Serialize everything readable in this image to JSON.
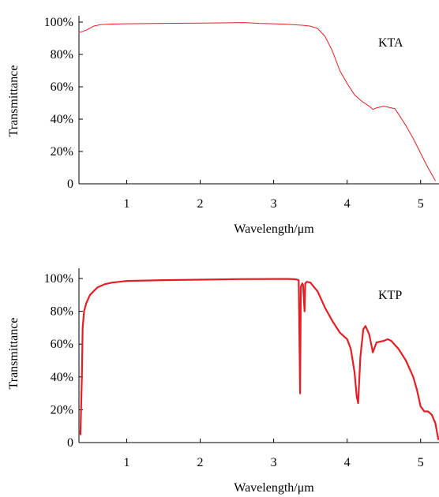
{
  "chart_data": [
    {
      "type": "line",
      "series_label": "KTA",
      "xlabel": "Wavelength/μm",
      "ylabel": "Transmittance",
      "xlim": [
        0.35,
        5.25
      ],
      "ylim": [
        0,
        100
      ],
      "x_ticks": [
        1,
        2,
        3,
        4,
        5
      ],
      "x_tick_labels": [
        "1",
        "2",
        "3",
        "4",
        "5"
      ],
      "y_ticks": [
        0,
        20,
        40,
        60,
        80,
        100
      ],
      "y_tick_labels": [
        "0",
        "20%",
        "40%",
        "60%",
        "80%",
        "100%"
      ],
      "color": "#e31e24",
      "line_width": 1,
      "series": [
        {
          "x": [
            0.35,
            0.45,
            0.55,
            0.65,
            0.8,
            1.0,
            1.5,
            2.0,
            2.3,
            2.6,
            2.8,
            3.0,
            3.2,
            3.4,
            3.5,
            3.6,
            3.7,
            3.8,
            3.9,
            4.0,
            4.1,
            4.2,
            4.3,
            4.35,
            4.4,
            4.5,
            4.6,
            4.65,
            4.7,
            4.8,
            4.9,
            5.0,
            5.1,
            5.2
          ],
          "y": [
            93.5,
            95,
            97.5,
            98.5,
            98.8,
            99,
            99.2,
            99.4,
            99.5,
            99.7,
            99.2,
            99,
            98.6,
            98,
            97.5,
            96,
            91,
            82,
            70,
            62,
            55,
            51,
            48,
            46,
            47,
            48,
            47,
            46.5,
            43,
            36,
            28,
            19,
            10,
            2
          ]
        }
      ]
    },
    {
      "type": "line",
      "series_label": "KTP",
      "xlabel": "Wavelength/μm",
      "ylabel": "Transmittance",
      "xlim": [
        0.35,
        5.25
      ],
      "ylim": [
        0,
        100
      ],
      "x_ticks": [
        1,
        2,
        3,
        4,
        5
      ],
      "x_tick_labels": [
        "1",
        "2",
        "3",
        "4",
        "5"
      ],
      "y_ticks": [
        0,
        20,
        40,
        60,
        80,
        100
      ],
      "y_tick_labels": [
        "0",
        "20%",
        "40%",
        "60%",
        "80%",
        "100%"
      ],
      "color": "#e31e24",
      "line_width": 2.2,
      "series": [
        {
          "x": [
            0.37,
            0.39,
            0.4,
            0.42,
            0.45,
            0.5,
            0.6,
            0.7,
            0.8,
            0.9,
            1.0,
            1.5,
            2.0,
            2.5,
            3.0,
            3.1,
            3.2,
            3.3,
            3.34,
            3.36,
            3.37,
            3.38,
            3.39,
            3.4,
            3.42,
            3.43,
            3.45,
            3.5,
            3.6,
            3.7,
            3.8,
            3.9,
            3.95,
            4.0,
            4.05,
            4.1,
            4.13,
            4.15,
            4.18,
            4.22,
            4.25,
            4.3,
            4.35,
            4.4,
            4.5,
            4.55,
            4.6,
            4.7,
            4.8,
            4.9,
            4.95,
            5.0,
            5.05,
            5.1,
            5.15,
            5.2,
            5.24
          ],
          "y": [
            5,
            40,
            70,
            80,
            85,
            90,
            94.5,
            96.5,
            97.5,
            98,
            98.5,
            99,
            99.3,
            99.6,
            99.7,
            99.7,
            99.7,
            99.5,
            99,
            30,
            95,
            96,
            97,
            96,
            80,
            97,
            98,
            97.5,
            92,
            82,
            74,
            67,
            65,
            63,
            57,
            43,
            28,
            24,
            52,
            69,
            71,
            66,
            55,
            61,
            62,
            63,
            62,
            57,
            50,
            40,
            32,
            22,
            19,
            19,
            17,
            12,
            2
          ]
        }
      ]
    }
  ]
}
